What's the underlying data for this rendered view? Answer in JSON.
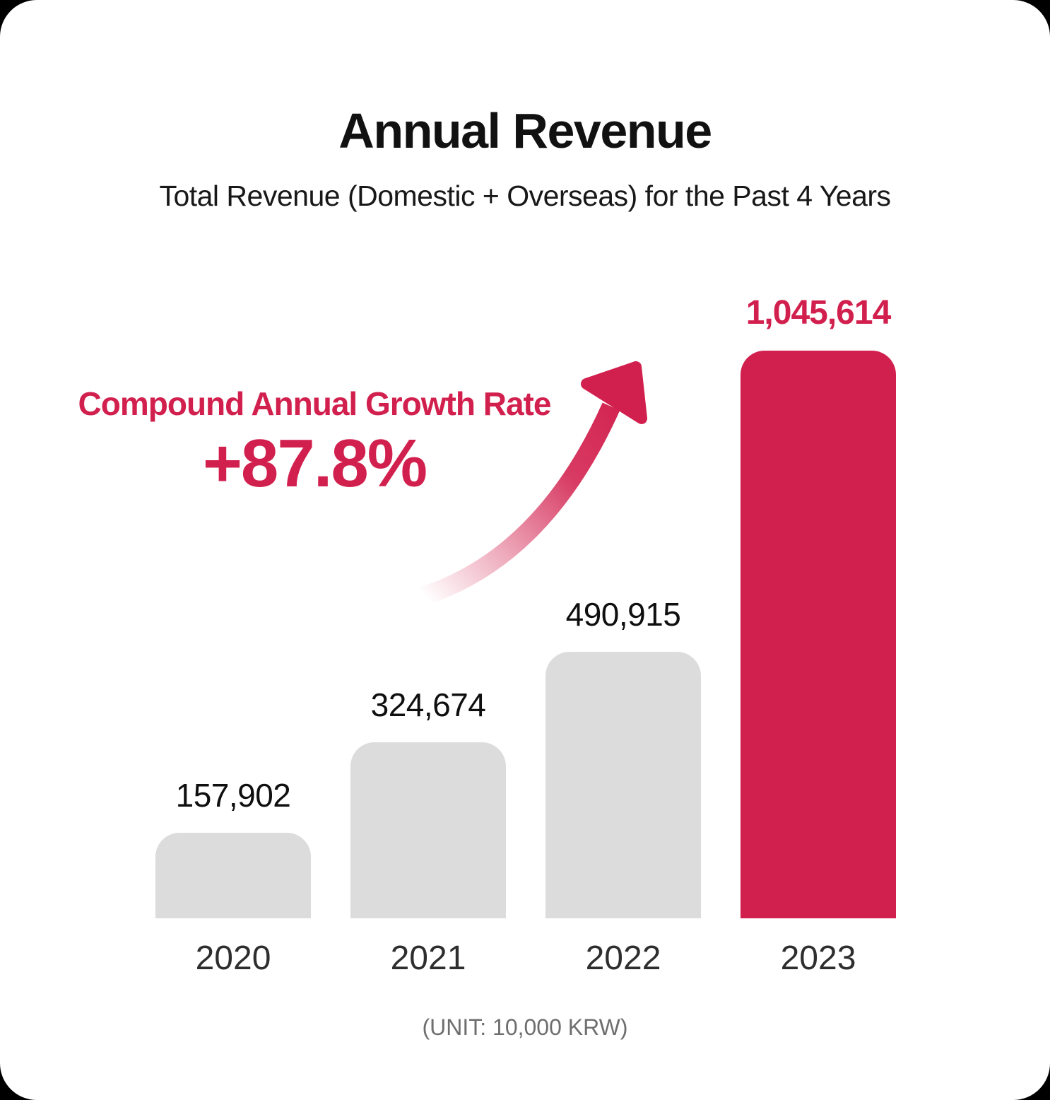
{
  "header": {
    "title": "Annual Revenue",
    "subtitle": "Total Revenue (Domestic + Overseas) for the Past 4 Years"
  },
  "annotation": {
    "label": "Compound Annual Growth Rate",
    "value": "+87.8%"
  },
  "footer": {
    "unit_note": "(UNIT: 10,000 KRW)"
  },
  "colors": {
    "accent_crimson": "#D2204E",
    "bar_gray": "#DCDCDC",
    "text_black": "#111111",
    "year_label_gray": "#2E2E2E",
    "unit_gray": "#6E6E6E",
    "background": "#FFFFFF"
  },
  "chart_data": {
    "type": "bar",
    "title": "Annual Revenue",
    "subtitle": "Total Revenue (Domestic + Overseas) for the Past 4 Years",
    "categories": [
      "2020",
      "2021",
      "2022",
      "2023"
    ],
    "values": [
      157902,
      324674,
      490915,
      1045614
    ],
    "value_labels": [
      "157,902",
      "324,674",
      "490,915",
      "1,045,614"
    ],
    "highlight_index": 3,
    "highlight_color": "#D2204E",
    "bar_color": "#DCDCDC",
    "unit": "(UNIT: 10,000 KRW)",
    "annotation": {
      "label": "Compound Annual Growth Rate",
      "value": "+87.8%",
      "arrow": "curved-up-right"
    },
    "ylim": [
      0,
      1045614
    ],
    "grid": false,
    "legend": false
  }
}
